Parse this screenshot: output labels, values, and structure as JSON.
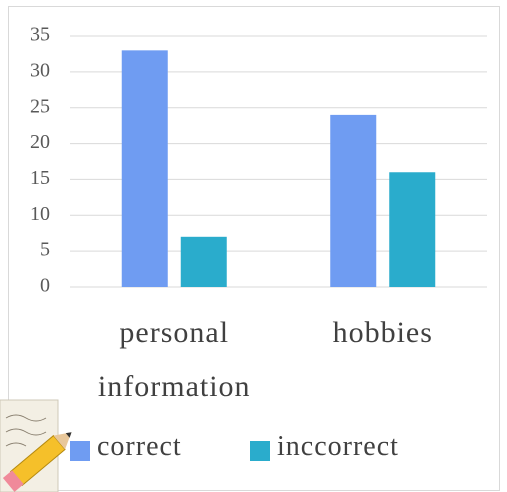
{
  "chart_data": {
    "type": "bar",
    "categories": [
      "personal information",
      "hobbies"
    ],
    "series": [
      {
        "name": "correct",
        "color": "#6f9cf2",
        "values": [
          33,
          24
        ]
      },
      {
        "name": "inccorrect",
        "color": "#2aaccc",
        "values": [
          7,
          16
        ]
      }
    ],
    "ylim": [
      0,
      35
    ],
    "yticks": [
      0,
      5,
      10,
      15,
      20,
      25,
      30,
      35
    ],
    "grid": true,
    "legend": "bottom"
  }
}
